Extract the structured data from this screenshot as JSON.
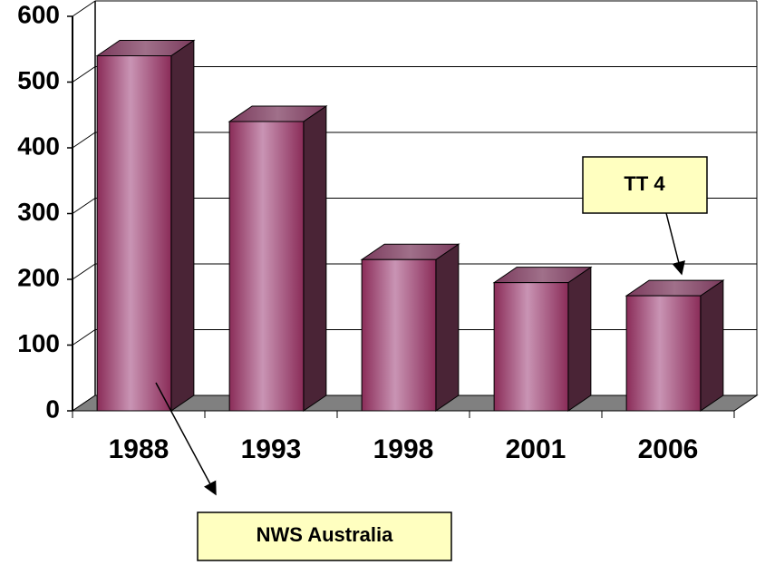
{
  "chart_data": {
    "type": "bar",
    "categories": [
      "1988",
      "1993",
      "1998",
      "2001",
      "2006"
    ],
    "values": [
      540,
      440,
      230,
      195,
      175
    ],
    "color": "#a8467a",
    "ylim": [
      0,
      600
    ],
    "yticks": [
      0,
      100,
      200,
      300,
      400,
      500,
      600
    ],
    "grid": true,
    "annotations": [
      {
        "text": "NWS Australia"
      },
      {
        "text": "TT 4"
      }
    ]
  }
}
